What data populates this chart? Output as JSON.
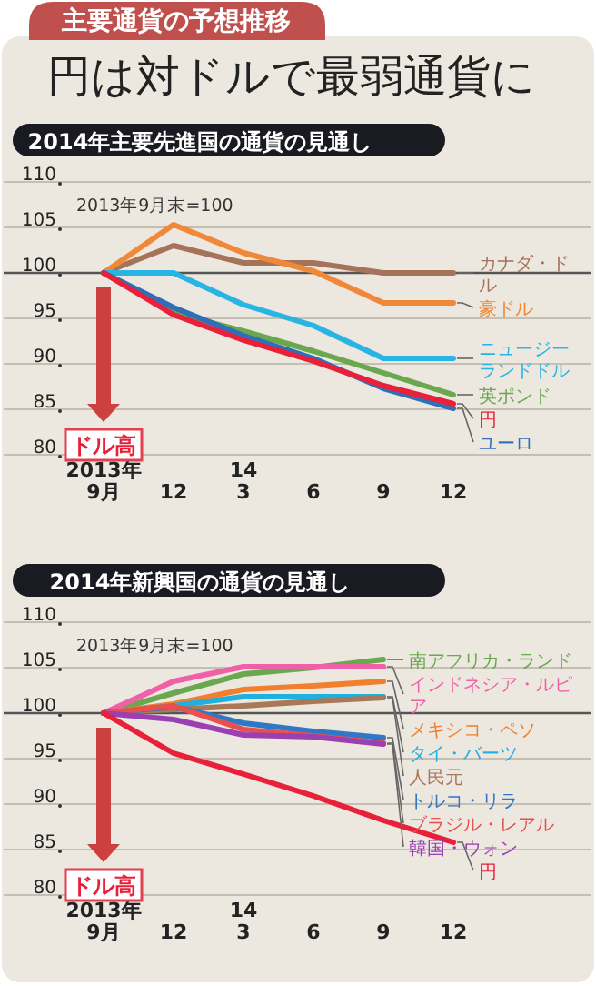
{
  "chart_data": [
    {
      "type": "other",
      "title": "円は対ドルで最弱通貨に",
      "subtitle": "主要通貨の予想推移"
    },
    {
      "type": "line",
      "title": "2014年主要先進国の通貨の見通し",
      "categories": [
        "2013年\n9月",
        "12",
        "14\n3",
        "6",
        "9",
        "12"
      ],
      "ylim": [
        80,
        110
      ],
      "yticks": [
        80,
        85,
        90,
        95,
        100,
        105,
        110
      ],
      "grid": "y",
      "ref_lines": [
        {
          "axis": "y",
          "value": 100,
          "color": "#555555"
        }
      ],
      "annotations": [
        "2013年9月末=100",
        "ドル高"
      ],
      "series": [
        {
          "name": "カナダ・ドル",
          "color": "#a5735a",
          "values": [
            100,
            103.0,
            101.1,
            101.1,
            100.0,
            100.0
          ]
        },
        {
          "name": "豪ドル",
          "color": "#f0883a",
          "values": [
            100,
            105.3,
            102.2,
            100.2,
            96.7,
            96.7
          ]
        },
        {
          "name": "ニュージーランドドル",
          "color": "#29b5e4",
          "values": [
            100,
            100.0,
            96.5,
            94.2,
            90.6,
            90.6
          ]
        },
        {
          "name": "英ポンド",
          "color": "#6aa84f",
          "values": [
            100,
            95.6,
            93.6,
            91.4,
            89.0,
            86.6
          ]
        },
        {
          "name": "ユーロ",
          "color": "#2f6fb8",
          "values": [
            100,
            96.2,
            93.1,
            90.6,
            87.3,
            85.1
          ]
        },
        {
          "name": "円",
          "color": "#e8203a",
          "values": [
            100,
            95.4,
            92.6,
            90.3,
            87.6,
            85.6
          ]
        }
      ]
    },
    {
      "type": "line",
      "title": "2014年新興国の通貨の見通し",
      "categories": [
        "2013年\n9月",
        "12",
        "14\n3",
        "6",
        "9",
        "12"
      ],
      "ylim": [
        80,
        110
      ],
      "yticks": [
        80,
        85,
        90,
        95,
        100,
        105,
        110
      ],
      "grid": "y",
      "ref_lines": [
        {
          "axis": "y",
          "value": 100,
          "color": "#555555"
        }
      ],
      "annotations": [
        "2013年9月末=100",
        "ドル高"
      ],
      "series": [
        {
          "name": "南アフリカ・ランド",
          "color": "#6aa84f",
          "values": [
            100,
            102.2,
            104.3,
            105.0,
            105.9,
            null
          ]
        },
        {
          "name": "インドネシア・ルピア",
          "color": "#f060a8",
          "values": [
            100,
            103.5,
            105.1,
            105.1,
            105.1,
            null
          ]
        },
        {
          "name": "メキシコ・ペソ",
          "color": "#f08030",
          "values": [
            100,
            101.0,
            102.6,
            103.0,
            103.5,
            null
          ]
        },
        {
          "name": "タイ・バーツ",
          "color": "#20b0e0",
          "values": [
            100,
            100.8,
            101.8,
            101.8,
            101.8,
            null
          ]
        },
        {
          "name": "人民元",
          "color": "#a87858",
          "values": [
            100,
            100.4,
            100.8,
            101.3,
            101.7,
            null
          ]
        },
        {
          "name": "トルコ・リラ",
          "color": "#2f78c8",
          "values": [
            100,
            100.7,
            98.9,
            98.0,
            97.3,
            null
          ]
        },
        {
          "name": "ブラジル・レアル",
          "color": "#e85050",
          "values": [
            100,
            100.8,
            98.2,
            97.5,
            96.7,
            null
          ]
        },
        {
          "name": "韓国・ウォン",
          "color": "#9a40b0",
          "values": [
            100,
            99.3,
            97.6,
            97.4,
            96.6,
            null
          ]
        },
        {
          "name": "円",
          "color": "#e8203a",
          "values": [
            100,
            95.6,
            93.3,
            90.9,
            88.2,
            85.8
          ]
        }
      ]
    }
  ]
}
